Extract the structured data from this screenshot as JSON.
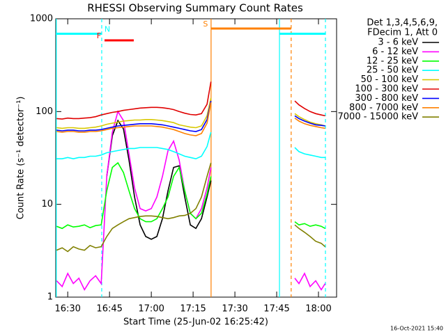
{
  "chart_data": {
    "type": "line",
    "title": "RHESSI Observing Summary Count Rates",
    "xlabel": "Start Time (25-Jun-02 16:25:42)",
    "ylabel": "Count Rate (s⁻¹ detector⁻¹)",
    "footer": "16-Oct-2021 15:40",
    "legend_header": [
      "Det 1,3,4,5,6,9,",
      "FDecim 1, Att 0"
    ],
    "log_y": true,
    "xlim": [
      25.7,
      126.5
    ],
    "xticks": [
      {
        "value": 30,
        "label": "16:30"
      },
      {
        "value": 45,
        "label": "16:45"
      },
      {
        "value": 60,
        "label": "17:00"
      },
      {
        "value": 75,
        "label": "17:15"
      },
      {
        "value": 90,
        "label": "17:30"
      },
      {
        "value": 105,
        "label": "17:45"
      },
      {
        "value": 120,
        "label": "18:00"
      }
    ],
    "ylim": [
      1,
      1000
    ],
    "yticks": [
      1,
      10,
      100,
      1000
    ],
    "x": [
      26,
      28,
      30,
      32,
      34,
      36,
      38,
      40,
      42,
      44,
      46,
      48,
      50,
      52,
      54,
      56,
      58,
      60,
      62,
      64,
      66,
      68,
      70,
      72,
      74,
      76,
      78,
      80,
      81.4,
      95,
      111.5,
      113,
      115,
      117,
      119,
      121,
      122.4
    ],
    "series": [
      {
        "name": "3 - 6 keV",
        "color": "#000000",
        "values": [
          null,
          null,
          null,
          null,
          null,
          null,
          null,
          null,
          null,
          20,
          55,
          80,
          65,
          30,
          12,
          6,
          4.5,
          4.2,
          4.5,
          7,
          14,
          25,
          26,
          12,
          6,
          5.5,
          7,
          12,
          18,
          null,
          null,
          null,
          null,
          null,
          null,
          null,
          null
        ]
      },
      {
        "name": "6 - 12 keV",
        "color": "#ff00ff",
        "values": [
          1.5,
          1.3,
          1.8,
          1.4,
          1.6,
          1.2,
          1.5,
          1.7,
          1.4,
          20,
          60,
          100,
          80,
          35,
          15,
          9,
          8.5,
          9,
          12,
          20,
          38,
          48,
          30,
          14,
          8,
          7,
          9,
          15,
          25,
          null,
          1.6,
          1.4,
          1.8,
          1.3,
          1.5,
          1.2,
          1.4
        ]
      },
      {
        "name": "12 - 25 keV",
        "color": "#00ff00",
        "values": [
          5.8,
          5.5,
          6,
          5.7,
          5.8,
          6,
          5.6,
          5.9,
          6,
          14,
          25,
          28,
          22,
          14,
          9,
          7,
          6.5,
          6.5,
          7,
          9,
          12,
          20,
          25,
          14,
          8,
          7,
          8,
          13,
          20,
          null,
          6.5,
          6,
          6.2,
          5.8,
          6,
          5.8,
          5.5
        ]
      },
      {
        "name": "25 - 50 keV",
        "color": "#00ffff",
        "values": [
          31,
          31,
          32,
          31,
          32,
          32,
          33,
          33,
          34,
          36,
          37,
          38,
          39,
          40,
          40,
          41,
          41,
          41,
          41,
          40,
          39,
          37,
          35,
          33,
          32,
          31,
          33,
          42,
          60,
          null,
          41,
          37,
          35,
          34,
          33,
          32,
          32
        ]
      },
      {
        "name": "50 - 100 keV",
        "color": "#d8c800",
        "values": [
          67,
          66,
          67,
          67,
          66,
          66,
          67,
          68,
          70,
          73,
          75,
          77,
          79,
          80,
          81,
          81,
          82,
          82,
          81,
          80,
          78,
          76,
          72,
          70,
          68,
          67,
          70,
          90,
          140,
          null,
          95,
          88,
          82,
          77,
          74,
          72,
          70
        ]
      },
      {
        "name": "100 - 300 keV",
        "color": "#e00000",
        "values": [
          84,
          83,
          85,
          84,
          84,
          85,
          86,
          88,
          92,
          95,
          98,
          100,
          103,
          105,
          107,
          109,
          110,
          111,
          111,
          110,
          108,
          105,
          100,
          96,
          93,
          92,
          95,
          120,
          210,
          null,
          130,
          118,
          108,
          100,
          95,
          92,
          90
        ]
      },
      {
        "name": "300 - 800 keV",
        "color": "#0000ff",
        "values": [
          63,
          62,
          63,
          63,
          62,
          62,
          63,
          63,
          64,
          66,
          68,
          70,
          71,
          72,
          73,
          74,
          74,
          74,
          73,
          72,
          70,
          68,
          66,
          64,
          62,
          61,
          64,
          82,
          130,
          null,
          90,
          84,
          79,
          75,
          72,
          71,
          70
        ]
      },
      {
        "name": "800 - 7000 keV",
        "color": "#ff8000",
        "values": [
          61,
          60,
          61,
          61,
          60,
          60,
          61,
          61,
          62,
          64,
          66,
          67,
          68,
          69,
          70,
          70,
          70,
          70,
          69,
          68,
          66,
          64,
          61,
          58,
          56,
          55,
          58,
          75,
          125,
          null,
          85,
          79,
          74,
          71,
          69,
          67,
          66
        ]
      },
      {
        "name": "7000 - 15000 keV",
        "color": "#808000",
        "values": [
          3.2,
          3.4,
          3.1,
          3.5,
          3.3,
          3.2,
          3.6,
          3.4,
          3.5,
          4.5,
          5.5,
          6,
          6.5,
          7,
          7.2,
          7.4,
          7.5,
          7.5,
          7.4,
          7.2,
          7,
          7.2,
          7.5,
          7.6,
          8,
          9,
          12,
          20,
          28,
          null,
          6,
          5.5,
          5,
          4.5,
          4,
          3.8,
          3.5
        ]
      }
    ],
    "flags": [
      {
        "label": "N",
        "color": "#00ffff",
        "level": 690,
        "label_side": "right",
        "intervals": [
          [
            25.7,
            42.2
          ],
          [
            106,
            122.5
          ]
        ]
      },
      {
        "label": "F",
        "color": "#ff0000",
        "level": 585,
        "label_side": "left",
        "intervals": [
          [
            43.2,
            53.7
          ]
        ]
      },
      {
        "label": "S",
        "color": "#ff8000",
        "level": 785,
        "label_side": "left",
        "intervals": [
          [
            81.45,
            110.2
          ]
        ]
      }
    ],
    "vlines": [
      {
        "x": 25.9,
        "color": "#00ffff",
        "dashed": false
      },
      {
        "x": 42.2,
        "color": "#00ffff",
        "dashed": true
      },
      {
        "x": 106,
        "color": "#00ffff",
        "dashed": false
      },
      {
        "x": 122.5,
        "color": "#00ffff",
        "dashed": true
      },
      {
        "x": 81.45,
        "color": "#ff8000",
        "dashed": false
      },
      {
        "x": 110.2,
        "color": "#ff8000",
        "dashed": true
      }
    ]
  }
}
